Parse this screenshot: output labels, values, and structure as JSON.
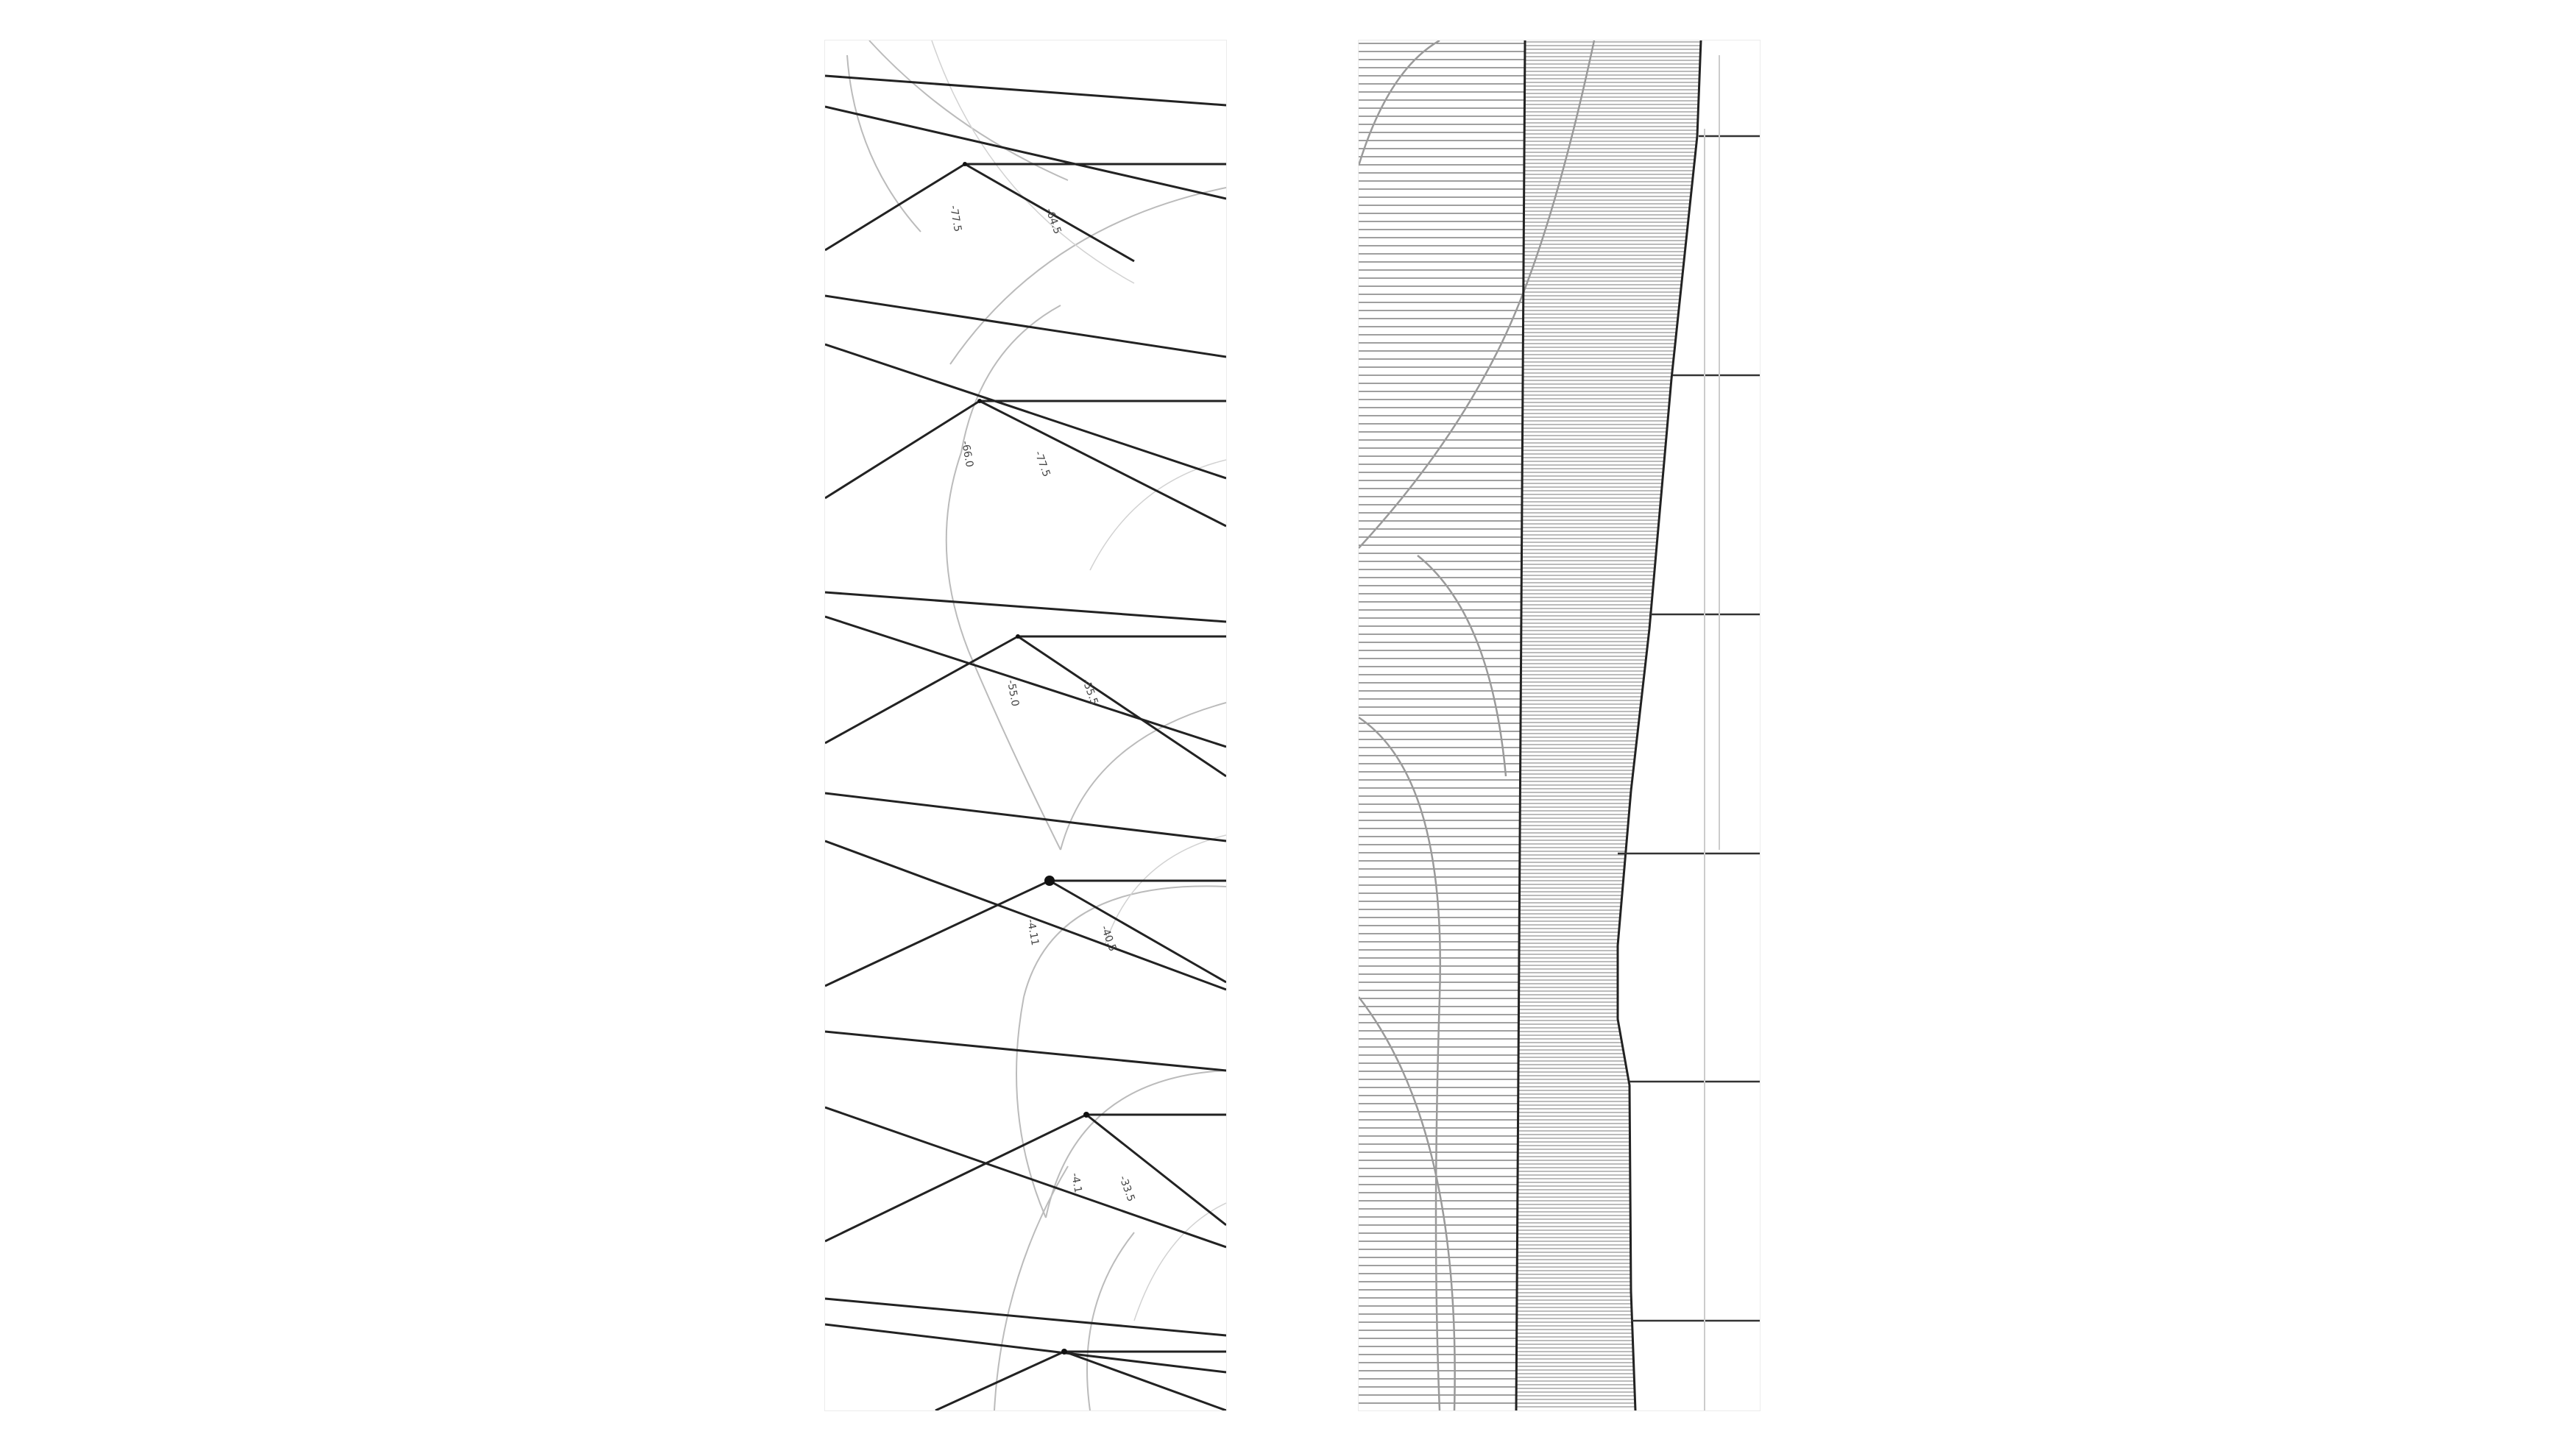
{
  "canvas": {
    "background": "#ffffff"
  },
  "left_drawing": {
    "ink": "#222222",
    "construction_ink": "#b8b8b8",
    "annotations": [
      {
        "text": "-77.5"
      },
      {
        "text": "-64.5"
      },
      {
        "text": "-66.0"
      },
      {
        "text": "-77.5"
      },
      {
        "text": "-55.0"
      },
      {
        "text": "-55.5"
      },
      {
        "text": "-4.11"
      },
      {
        "text": "-40.5"
      },
      {
        "text": "-4.1"
      },
      {
        "text": "-33.5"
      }
    ]
  },
  "right_drawing": {
    "ink": "#333333",
    "dense_band_fill": "#9a9a9a",
    "profile_line": "#222222"
  }
}
